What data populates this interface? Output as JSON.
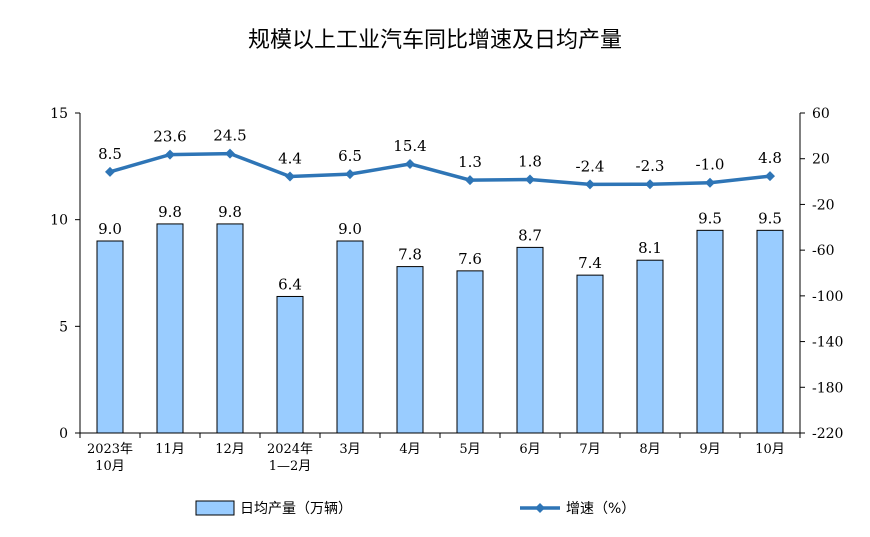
{
  "chart_data": {
    "type": "bar",
    "title": "规模以上工业汽车同比增速及日均产量",
    "categories": [
      "2023年\n10月",
      "11月",
      "12月",
      "2024年\n1—2月",
      "3月",
      "4月",
      "5月",
      "6月",
      "7月",
      "8月",
      "9月",
      "10月"
    ],
    "series": [
      {
        "name": "日均产量（万辆）",
        "type": "bar",
        "axis": "left",
        "color": "#99CCFF",
        "values": [
          9.0,
          9.8,
          9.8,
          6.4,
          9.0,
          7.8,
          7.6,
          8.7,
          7.4,
          8.1,
          9.5,
          9.5
        ],
        "labels": [
          "9.0",
          "9.8",
          "9.8",
          "6.4",
          "9.0",
          "7.8",
          "7.6",
          "8.7",
          "7.4",
          "8.1",
          "9.5",
          "9.5"
        ]
      },
      {
        "name": "增速（%）",
        "type": "line",
        "axis": "right",
        "color": "#2E75B6",
        "values": [
          8.5,
          23.6,
          24.5,
          4.4,
          6.5,
          15.4,
          1.3,
          1.8,
          -2.4,
          -2.3,
          -1.0,
          4.8
        ],
        "labels": [
          "8.5",
          "23.6",
          "24.5",
          "4.4",
          "6.5",
          "15.4",
          "1.3",
          "1.8",
          "-2.4",
          "-2.3",
          "-1.0",
          "4.8"
        ]
      }
    ],
    "y_left": {
      "min": 0,
      "max": 15,
      "ticks": [
        "0",
        "5",
        "10",
        "15"
      ]
    },
    "y_right": {
      "min": -220,
      "max": 60,
      "ticks": [
        "60",
        "20",
        "-20",
        "-60",
        "-100",
        "-140",
        "-180",
        "-220"
      ]
    },
    "grid": false,
    "legend": "bottom"
  }
}
